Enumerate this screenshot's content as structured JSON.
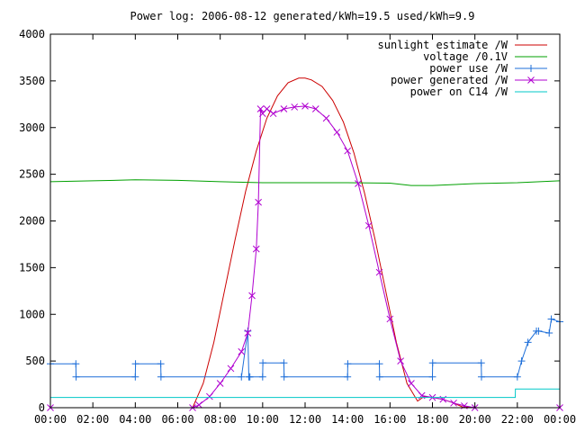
{
  "chart_data": {
    "type": "line",
    "title": "Power log: 2006-08-12 generated/kWh=19.5 used/kWh=9.9",
    "xlabel": "",
    "ylabel": "",
    "xlim": [
      0,
      24
    ],
    "ylim": [
      0,
      4000
    ],
    "grid": false,
    "legend_position": "top-right",
    "x_ticks": [
      0,
      2,
      4,
      6,
      8,
      10,
      12,
      14,
      16,
      18,
      20,
      22,
      24
    ],
    "x_tick_labels": [
      "00:00",
      "02:00",
      "04:00",
      "06:00",
      "08:00",
      "10:00",
      "12:00",
      "14:00",
      "16:00",
      "18:00",
      "20:00",
      "22:00",
      "00:00"
    ],
    "y_ticks": [
      0,
      500,
      1000,
      1500,
      2000,
      2500,
      3000,
      3500,
      4000
    ],
    "y_tick_labels": [
      "0",
      "500",
      "1000",
      "1500",
      "2000",
      "2500",
      "3000",
      "3500",
      "4000"
    ],
    "series": [
      {
        "name": "sunlight estimate /W",
        "color": "#cc0000",
        "marker": "none",
        "x": [
          0,
          6.7,
          7.2,
          7.7,
          8.2,
          8.7,
          9.2,
          9.7,
          10.2,
          10.7,
          11.2,
          11.7,
          12.0,
          12.3,
          12.8,
          13.3,
          13.8,
          14.3,
          14.8,
          15.3,
          15.8,
          16.3,
          16.8,
          17.3,
          17.6,
          18.0,
          18.5,
          19.0,
          19.4,
          20.0,
          24
        ],
        "values": [
          0,
          0,
          260,
          700,
          1250,
          1800,
          2320,
          2750,
          3100,
          3340,
          3480,
          3530,
          3530,
          3510,
          3440,
          3290,
          3060,
          2730,
          2300,
          1800,
          1250,
          700,
          260,
          70,
          120,
          110,
          90,
          50,
          10,
          0,
          0
        ]
      },
      {
        "name": "voltage /0.1V",
        "color": "#00a000",
        "marker": "none",
        "x": [
          0,
          2,
          4,
          6,
          8,
          10,
          12,
          14,
          16,
          17,
          18,
          20,
          22,
          24
        ],
        "values": [
          2420,
          2430,
          2440,
          2435,
          2420,
          2410,
          2410,
          2410,
          2405,
          2380,
          2380,
          2400,
          2410,
          2430
        ]
      },
      {
        "name": "power use /W",
        "color": "#1e6fd9",
        "marker": "plus",
        "x": [
          0,
          1.2,
          1.21,
          4.0,
          4.01,
          5.2,
          5.21,
          9.0,
          9.3,
          9.35,
          9.4,
          10.0,
          10.01,
          11.0,
          11.01,
          14.0,
          14.01,
          15.5,
          15.51,
          18.0,
          18.01,
          20.3,
          20.31,
          22.0,
          22.2,
          22.5,
          22.9,
          23.0,
          23.5,
          23.6,
          24
        ],
        "values": [
          470,
          470,
          330,
          330,
          470,
          470,
          330,
          330,
          820,
          330,
          330,
          330,
          480,
          480,
          330,
          330,
          470,
          470,
          330,
          330,
          480,
          480,
          330,
          330,
          500,
          700,
          820,
          820,
          800,
          950,
          920
        ]
      },
      {
        "name": "power generated /W",
        "color": "#b000d0",
        "marker": "cross",
        "x": [
          0,
          6.7,
          7.0,
          7.5,
          8.0,
          8.5,
          9.0,
          9.3,
          9.5,
          9.7,
          9.8,
          9.9,
          10.0,
          10.2,
          10.5,
          11.0,
          11.5,
          12.0,
          12.5,
          13.0,
          13.5,
          14.0,
          14.5,
          15.0,
          15.5,
          16.0,
          16.5,
          17.0,
          17.5,
          18.0,
          18.5,
          19.0,
          19.5,
          20.0,
          24
        ],
        "values": [
          0,
          0,
          30,
          120,
          260,
          420,
          600,
          800,
          1200,
          1700,
          2200,
          3200,
          3150,
          3200,
          3150,
          3200,
          3220,
          3230,
          3200,
          3100,
          2950,
          2750,
          2400,
          1950,
          1450,
          950,
          500,
          260,
          130,
          110,
          90,
          50,
          20,
          0,
          0
        ]
      },
      {
        "name": "power on C14 /W",
        "color": "#00c8c8",
        "marker": "none",
        "x": [
          0,
          21.9,
          21.91,
          24
        ],
        "values": [
          110,
          110,
          200,
          200
        ]
      }
    ]
  }
}
